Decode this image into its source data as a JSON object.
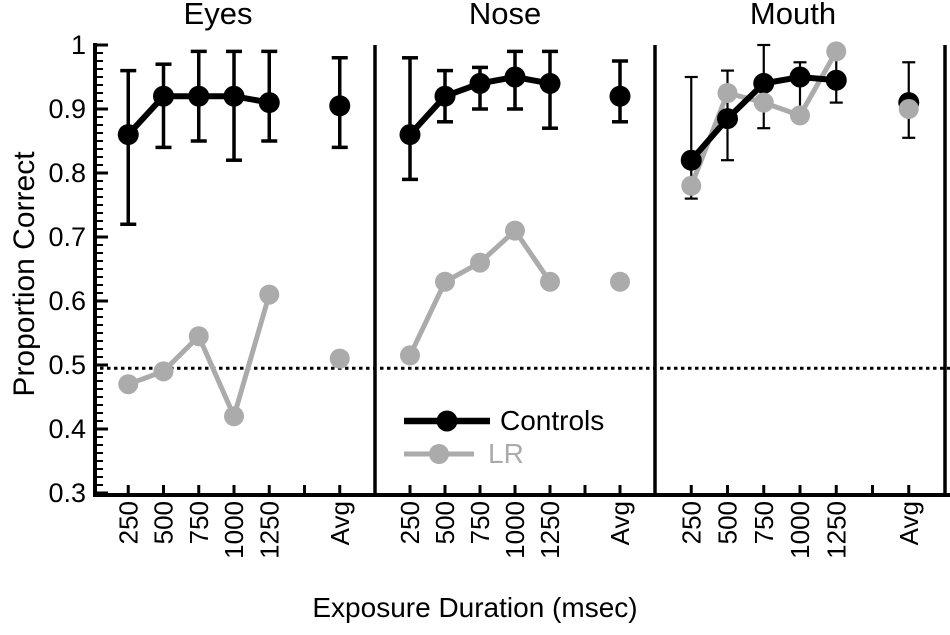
{
  "chart_data": {
    "type": "line",
    "xlabel": "Exposure Duration (msec)",
    "ylabel": "Proportion Correct",
    "ylim": [
      0.3,
      1.0
    ],
    "ytick_labels": [
      "0.3",
      "0.4",
      "0.5",
      "0.6",
      "0.7",
      "0.8",
      "0.9",
      "1"
    ],
    "ytick_values": [
      0.3,
      0.4,
      0.5,
      0.6,
      0.7,
      0.8,
      0.9,
      1.0
    ],
    "y_minor_step": 0.0125,
    "categories": [
      "250",
      "500",
      "750",
      "1000",
      "1250",
      "Avg"
    ],
    "chance_level": 0.495,
    "grid": false,
    "colors": {
      "controls": "#000000",
      "lr": "#ababab"
    },
    "legend": {
      "position": "inside-nose-panel-bottom",
      "entries": [
        {
          "label": "Controls",
          "color": "#000000"
        },
        {
          "label": "LR",
          "color": "#ababab"
        }
      ]
    },
    "panels": [
      {
        "title": "Eyes",
        "series": [
          {
            "name": "Controls",
            "values": [
              0.86,
              0.92,
              0.92,
              0.92,
              0.91,
              0.905
            ],
            "err_lo": [
              0.72,
              0.84,
              0.85,
              0.82,
              0.85,
              0.84
            ],
            "err_hi": [
              0.96,
              0.97,
              0.99,
              0.99,
              0.99,
              0.98
            ]
          },
          {
            "name": "LR",
            "values": [
              0.47,
              0.49,
              0.545,
              0.42,
              0.61,
              0.51
            ]
          }
        ]
      },
      {
        "title": "Nose",
        "series": [
          {
            "name": "Controls",
            "values": [
              0.86,
              0.92,
              0.94,
              0.95,
              0.94,
              0.92
            ],
            "err_lo": [
              0.79,
              0.88,
              0.9,
              0.9,
              0.87,
              0.88
            ],
            "err_hi": [
              0.98,
              0.96,
              0.965,
              0.99,
              0.99,
              0.975
            ]
          },
          {
            "name": "LR",
            "values": [
              0.515,
              0.63,
              0.66,
              0.71,
              0.63,
              0.63
            ]
          }
        ]
      },
      {
        "title": "Mouth",
        "series": [
          {
            "name": "Controls",
            "values": [
              0.82,
              0.885,
              0.94,
              0.95,
              0.945,
              0.91
            ],
            "err_lo": [
              0.76,
              0.82,
              0.87,
              0.89,
              0.91,
              0.855
            ],
            "err_hi": [
              0.95,
              0.96,
              1.0,
              0.973,
              0.98,
              0.973
            ]
          },
          {
            "name": "LR",
            "values": [
              0.78,
              0.925,
              0.91,
              0.89,
              0.99,
              0.9
            ]
          }
        ]
      }
    ]
  }
}
